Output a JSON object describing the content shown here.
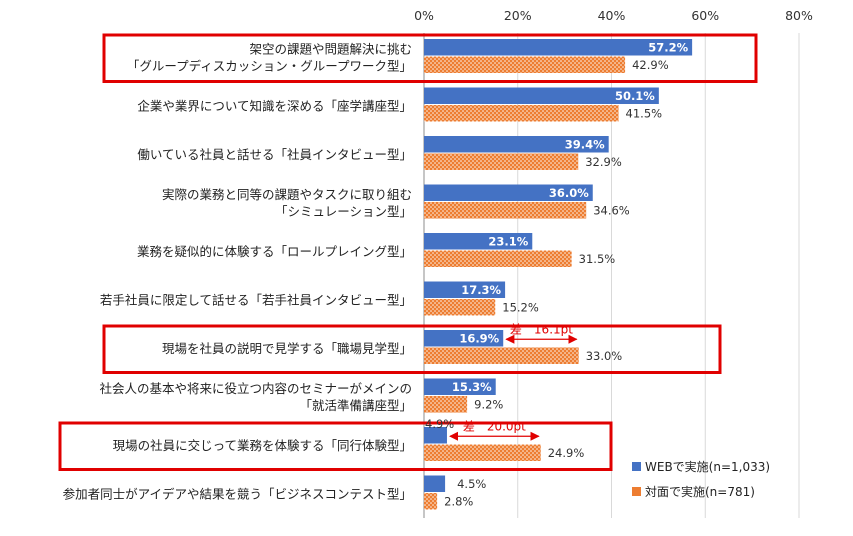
{
  "chart_data": {
    "type": "bar",
    "orientation": "horizontal",
    "xlim": [
      0,
      80
    ],
    "x_ticks": [
      "0%",
      "20%",
      "40%",
      "60%",
      "80%"
    ],
    "grid": true,
    "legend_position": "bottom-right",
    "categories": [
      [
        "架空の課題や問題解決に挑む",
        "「グループディスカッション・グループワーク型」"
      ],
      [
        "企業や業界について知識を深める「座学講座型」"
      ],
      [
        "働いている社員と話せる「社員インタビュー型」"
      ],
      [
        "実際の業務と同等の課題やタスクに取り組む",
        "「シミュレーション型」"
      ],
      [
        "業務を疑似的に体験する「ロールプレイング型」"
      ],
      [
        "若手社員に限定して話せる「若手社員インタビュー型」"
      ],
      [
        "現場を社員の説明で見学する「職場見学型」"
      ],
      [
        "社会人の基本や将来に役立つ内容のセミナーがメインの",
        "「就活準備講座型」"
      ],
      [
        "現場の社員に交じって業務を体験する「同行体験型」"
      ],
      [
        "参加者同士がアイデアや結果を競う「ビジネスコンテスト型」"
      ]
    ],
    "series": [
      {
        "name": "WEBで実施(n=1,033)",
        "color": "#4472c4",
        "values": [
          57.2,
          50.1,
          39.4,
          36.0,
          23.1,
          17.3,
          16.9,
          15.3,
          4.9,
          4.5
        ],
        "labels": [
          "57.2%",
          "50.1%",
          "39.4%",
          "36.0%",
          "23.1%",
          "17.3%",
          "16.9%",
          "15.3%",
          "4.9%",
          "4.5%"
        ]
      },
      {
        "name": "対面で実施(n=781)",
        "color": "#ed7d31",
        "pattern": "dotted",
        "values": [
          42.9,
          41.5,
          32.9,
          34.6,
          31.5,
          15.2,
          33.0,
          9.2,
          24.9,
          2.8
        ],
        "labels": [
          "42.9%",
          "41.5%",
          "32.9%",
          "34.6%",
          "31.5%",
          "15.2%",
          "33.0%",
          "9.2%",
          "24.9%",
          "2.8%"
        ]
      }
    ],
    "highlighted_categories": [
      0,
      6,
      8
    ],
    "highlight_color": "#e00000",
    "annotations": [
      {
        "category": 6,
        "from": 16.9,
        "to": 33.0,
        "text": "差　16.1pt"
      },
      {
        "category": 8,
        "from": 4.9,
        "to": 24.9,
        "text": "差　20.0pt"
      }
    ]
  }
}
